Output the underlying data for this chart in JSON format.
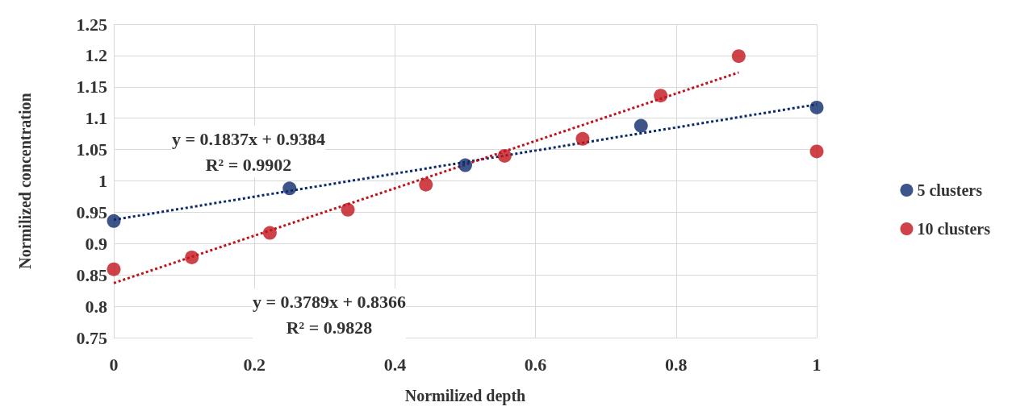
{
  "chart_data": {
    "type": "scatter",
    "xlabel": "Normilized depth",
    "ylabel": "Normilized concentration",
    "xlim": [
      0,
      1
    ],
    "xticks": [
      0,
      0.2,
      0.4,
      0.6,
      0.8,
      1
    ],
    "ylim": [
      0.75,
      1.25
    ],
    "yticks": [
      0.75,
      0.8,
      0.85,
      0.9,
      0.95,
      1,
      1.05,
      1.1,
      1.15,
      1.2,
      1.25
    ],
    "grid": true,
    "legend": "right",
    "marker": "circle",
    "series": [
      {
        "name": "5 clusters",
        "color": "#0c2a6b",
        "x": [
          0,
          0.25,
          0.5,
          0.75,
          1
        ],
        "values": [
          0.936,
          0.988,
          1.025,
          1.088,
          1.117
        ]
      },
      {
        "name": "10 clusters",
        "color": "#c0141c",
        "x": [
          0,
          0.111,
          0.222,
          0.333,
          0.444,
          0.556,
          0.667,
          0.778,
          0.889,
          1
        ],
        "values": [
          0.859,
          0.878,
          0.917,
          0.954,
          0.994,
          1.04,
          1.067,
          1.136,
          1.199,
          1.047
        ]
      },
      {
        "type": "line",
        "marker": "none",
        "line_style": "dotted",
        "color": "#0c2a6b",
        "x": [
          0,
          1
        ],
        "values": [
          0.938,
          1.122
        ]
      },
      {
        "type": "line",
        "marker": "none",
        "line_style": "dotted",
        "color": "#c0141c",
        "x": [
          0,
          0.889
        ],
        "values": [
          0.837,
          1.173
        ]
      }
    ],
    "annotations": [
      "y = 0.1837x + 0.9384\nR² = 0.9902",
      "y = 0.3789x + 0.8366\nR² = 0.9828"
    ]
  }
}
